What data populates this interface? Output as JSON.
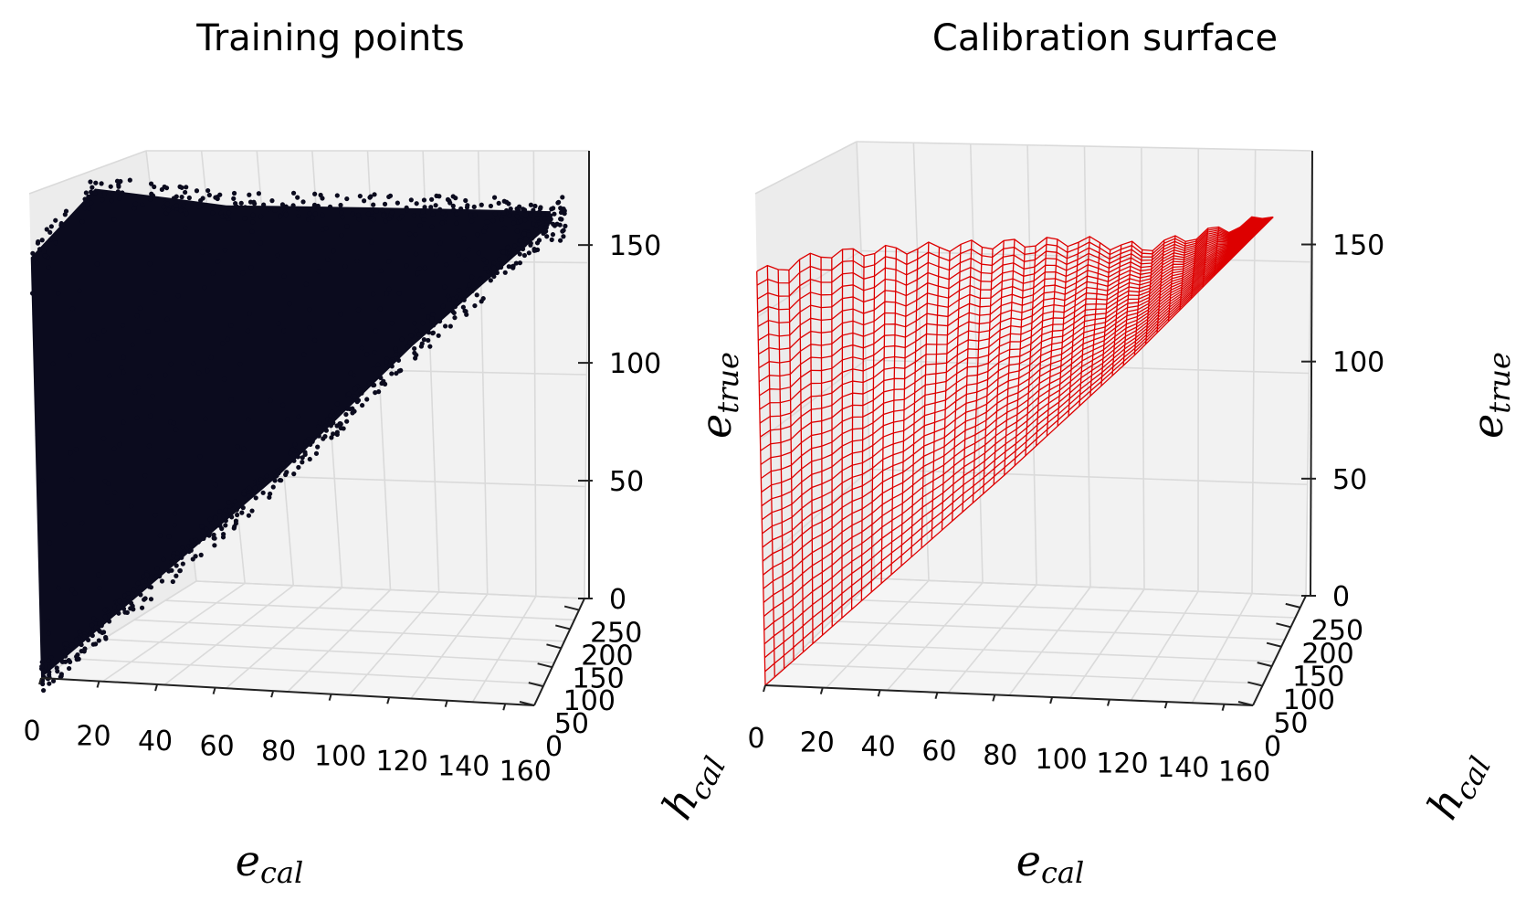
{
  "chart_data": [
    {
      "type": "scatter",
      "title": "Training points",
      "projection": "3d",
      "xlabel_base": "e",
      "xlabel_sub": "cal",
      "ylabel_base": "h",
      "ylabel_sub": "cal",
      "zlabel_base": "e",
      "zlabel_sub": "true",
      "xlim": [
        0,
        170
      ],
      "ylim": [
        0,
        280
      ],
      "zlim": [
        0,
        190
      ],
      "x_ticks": [
        "0",
        "20",
        "40",
        "60",
        "80",
        "100",
        "120",
        "140",
        "160"
      ],
      "y_ticks": [
        "0",
        "50",
        "100",
        "150",
        "200",
        "250"
      ],
      "z_ticks": [
        "0",
        "50",
        "100",
        "150"
      ],
      "point_color": "#0b0b1e",
      "grid": true,
      "description_region": {
        "e_cal_range": [
          0,
          165
        ],
        "e_true_range": [
          0,
          190
        ],
        "envelope_upper": [
          [
            0,
            165
          ],
          [
            20,
            190
          ],
          [
            60,
            180
          ],
          [
            110,
            175
          ],
          [
            160,
            170
          ]
        ],
        "envelope_lower": [
          [
            0,
            0
          ],
          [
            40,
            40
          ],
          [
            80,
            80
          ],
          [
            120,
            125
          ],
          [
            160,
            165
          ]
        ]
      }
    },
    {
      "type": "surface",
      "title": "Calibration surface",
      "projection": "3d",
      "xlabel_base": "e",
      "xlabel_sub": "cal",
      "ylabel_base": "h",
      "ylabel_sub": "cal",
      "zlabel_base": "e",
      "zlabel_sub": "true",
      "xlim": [
        0,
        170
      ],
      "ylim": [
        0,
        280
      ],
      "zlim": [
        0,
        190
      ],
      "x_ticks": [
        "0",
        "20",
        "40",
        "60",
        "80",
        "100",
        "120",
        "140",
        "160"
      ],
      "y_ticks": [
        "0",
        "50",
        "100",
        "150",
        "200",
        "250"
      ],
      "z_ticks": [
        "0",
        "50",
        "100",
        "150"
      ],
      "surface_color": "#dd0000",
      "grid": true,
      "top_edge": [
        [
          5,
          160
        ],
        [
          20,
          165
        ],
        [
          60,
          165
        ],
        [
          100,
          164
        ],
        [
          120,
          160
        ],
        [
          140,
          164
        ],
        [
          160,
          168
        ]
      ],
      "bottom_edge": [
        [
          0,
          0
        ],
        [
          40,
          40
        ],
        [
          80,
          80
        ],
        [
          120,
          122
        ],
        [
          160,
          168
        ]
      ]
    }
  ]
}
